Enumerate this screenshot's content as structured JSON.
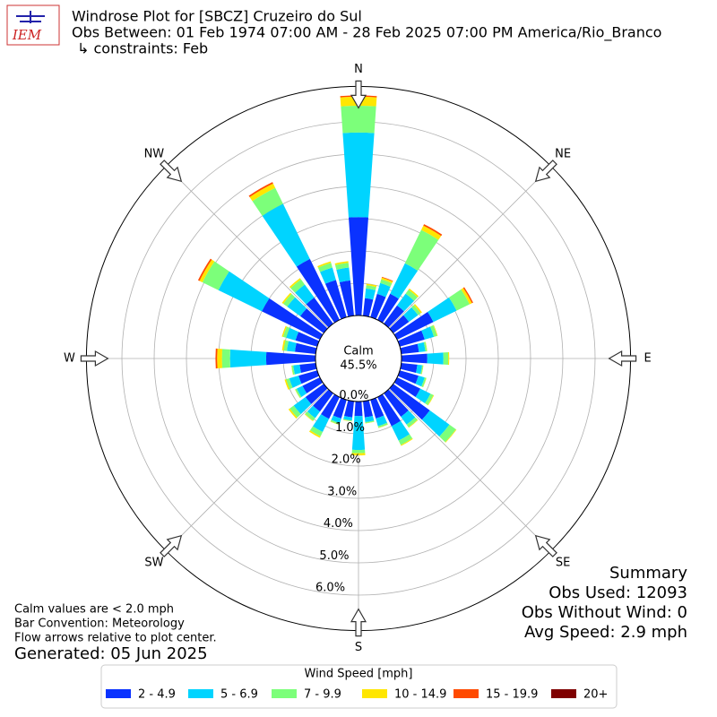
{
  "chart_data": {
    "type": "windrose",
    "logo": "IEM",
    "title": "Windrose Plot for [SBCZ] Cruzeiro do Sul",
    "subtitle": "Obs Between: 01 Feb 1974 07:00 AM - 28 Feb 2025 07:00 PM America/Rio_Branco",
    "constraints": "↳ constraints: Feb",
    "calm_label": "Calm",
    "calm_value": 45.5,
    "calm_value_label": "45.5%",
    "directions": [
      0,
      10,
      20,
      30,
      40,
      50,
      60,
      70,
      80,
      90,
      100,
      110,
      120,
      130,
      140,
      150,
      160,
      170,
      180,
      190,
      200,
      210,
      220,
      230,
      240,
      250,
      260,
      270,
      280,
      290,
      300,
      310,
      320,
      330,
      340,
      350
    ],
    "compass": [
      {
        "label": "N",
        "angle": 0
      },
      {
        "label": "NE",
        "angle": 45
      },
      {
        "label": "E",
        "angle": 90
      },
      {
        "label": "SE",
        "angle": 135
      },
      {
        "label": "S",
        "angle": 180
      },
      {
        "label": "SW",
        "angle": 225
      },
      {
        "label": "W",
        "angle": 270
      },
      {
        "label": "NW",
        "angle": 315
      }
    ],
    "ylim": [
      0,
      7.1
    ],
    "yticks": [
      {
        "value": 0,
        "label": "0.0%"
      },
      {
        "value": 1,
        "label": "1.0%"
      },
      {
        "value": 2,
        "label": "2.0%"
      },
      {
        "value": 3,
        "label": "3.0%"
      },
      {
        "value": 4,
        "label": "4.0%"
      },
      {
        "value": 5,
        "label": "5.0%"
      },
      {
        "value": 6,
        "label": "6.0%"
      }
    ],
    "grid": true,
    "legend_title": "Wind Speed [mph]",
    "series": [
      {
        "name": "2 - 4.9",
        "color": "#0a32ff",
        "values": [
          3.05,
          0.55,
          0.75,
          0.9,
          0.7,
          0.6,
          1.25,
          0.8,
          0.55,
          0.8,
          0.5,
          0.6,
          0.8,
          1.4,
          0.9,
          1.0,
          0.6,
          0.5,
          0.45,
          0.5,
          0.6,
          0.75,
          0.7,
          0.7,
          0.6,
          0.6,
          0.5,
          1.53,
          0.65,
          0.7,
          2.0,
          0.9,
          1.0,
          2.1,
          1.2,
          1.1
        ]
      },
      {
        "name": "5 - 6.9",
        "color": "#00d4ff",
        "values": [
          2.62,
          0.3,
          0.35,
          1.05,
          0.45,
          0.35,
          0.8,
          0.3,
          0.2,
          0.5,
          0.15,
          0.2,
          0.35,
          0.75,
          0.3,
          0.5,
          0.25,
          0.15,
          1.05,
          0.1,
          0.15,
          0.45,
          0.25,
          0.45,
          0.2,
          0.3,
          0.2,
          1.12,
          0.25,
          0.3,
          1.5,
          0.5,
          0.5,
          1.9,
          0.4,
          0.4
        ]
      },
      {
        "name": "7 - 9.9",
        "color": "#7cff7a",
        "values": [
          0.83,
          0.1,
          0.12,
          1.15,
          0.15,
          0.1,
          0.45,
          0.1,
          0.05,
          0.15,
          0.03,
          0.05,
          0.1,
          0.25,
          0.1,
          0.15,
          0.05,
          0.03,
          0.1,
          0.02,
          0.05,
          0.15,
          0.1,
          0.15,
          0.05,
          0.1,
          0.05,
          0.25,
          0.1,
          0.1,
          0.55,
          0.15,
          0.2,
          0.55,
          0.15,
          0.15
        ]
      },
      {
        "name": "10 - 14.9",
        "color": "#ffe600",
        "values": [
          0.28,
          0.05,
          0.06,
          0.15,
          0.05,
          0.05,
          0.08,
          0.02,
          0.01,
          0.03,
          0.01,
          0.01,
          0.02,
          0.02,
          0.02,
          0.03,
          0.01,
          0.01,
          0.07,
          0.01,
          0.01,
          0.05,
          0.02,
          0.05,
          0.01,
          0.05,
          0.01,
          0.15,
          0.05,
          0.04,
          0.1,
          0.05,
          0.05,
          0.15,
          0.05,
          0.05
        ]
      },
      {
        "name": "15 - 19.9",
        "color": "#ff4a00",
        "values": [
          0.04,
          0,
          0.02,
          0.05,
          0,
          0,
          0.04,
          0,
          0,
          0,
          0,
          0,
          0,
          0,
          0,
          0,
          0,
          0,
          0,
          0,
          0,
          0,
          0,
          0,
          0,
          0,
          0,
          0.05,
          0,
          0,
          0.05,
          0,
          0,
          0.05,
          0,
          0
        ]
      },
      {
        "name": "20+",
        "color": "#7f0000",
        "values": [
          0,
          0,
          0,
          0,
          0,
          0,
          0,
          0,
          0,
          0,
          0,
          0,
          0,
          0,
          0,
          0,
          0,
          0,
          0,
          0,
          0,
          0,
          0,
          0,
          0,
          0,
          0,
          0,
          0,
          0,
          0,
          0,
          0,
          0,
          0,
          0
        ]
      }
    ],
    "notes": [
      "Calm values are < 2.0 mph",
      "Bar Convention: Meteorology",
      "Flow arrows relative to plot center."
    ],
    "generated": "Generated: 05 Jun 2025",
    "summary": [
      "Summary",
      "Obs Used: 12093",
      "Obs Without Wind: 0",
      "Avg Speed: 2.9 mph"
    ]
  }
}
